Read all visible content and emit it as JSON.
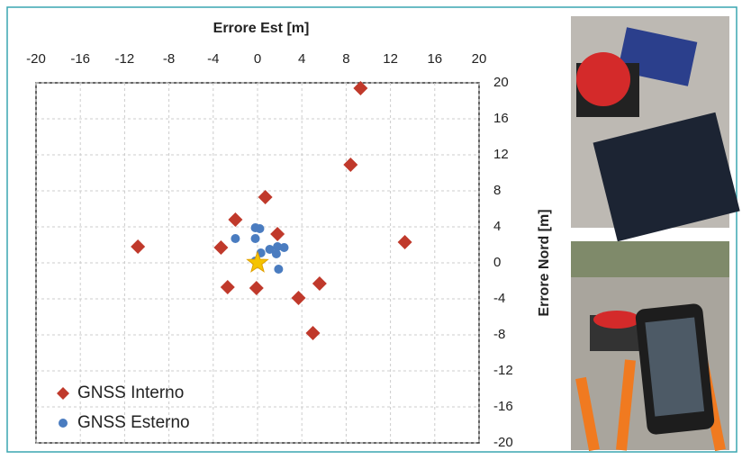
{
  "chart_data": {
    "type": "scatter",
    "x_label": "Errore Est [m]",
    "y_label": "Errore Nord [m]",
    "xlim": [
      -20,
      20
    ],
    "ylim": [
      -20,
      20
    ],
    "xticks": [
      -20,
      -16,
      -12,
      -8,
      -4,
      0,
      4,
      8,
      12,
      16,
      20
    ],
    "yticks": [
      -20,
      -16,
      -12,
      -8,
      -4,
      0,
      4,
      8,
      12,
      16,
      20
    ],
    "grid": true,
    "legend": "lower left",
    "series": [
      {
        "name": "GNSS Interno",
        "color": "#c0392b",
        "marker": "diamond",
        "x": [
          9.3,
          8.4,
          0.7,
          -2.0,
          1.8,
          -10.8,
          -3.3,
          13.3,
          -2.7,
          -0.1,
          5.6,
          3.7,
          5.0
        ],
        "values": [
          19.4,
          10.9,
          7.3,
          4.8,
          3.2,
          1.8,
          1.7,
          2.3,
          -2.7,
          -2.8,
          -2.3,
          -3.9,
          -7.8
        ]
      },
      {
        "name": "GNSS Esterno",
        "color": "#4a7cc0",
        "marker": "circle",
        "x": [
          -0.2,
          0.2,
          -2.0,
          -0.2,
          1.1,
          1.8,
          2.4,
          1.7,
          0.3,
          1.9,
          -0.2
        ],
        "values": [
          3.9,
          3.8,
          2.7,
          2.7,
          1.5,
          1.8,
          1.7,
          1.0,
          1.1,
          -0.7,
          0.2
        ]
      }
    ],
    "reference_point": {
      "x": [
        0
      ],
      "values": [
        0
      ],
      "color": "#f5c400",
      "marker": "star"
    }
  }
}
